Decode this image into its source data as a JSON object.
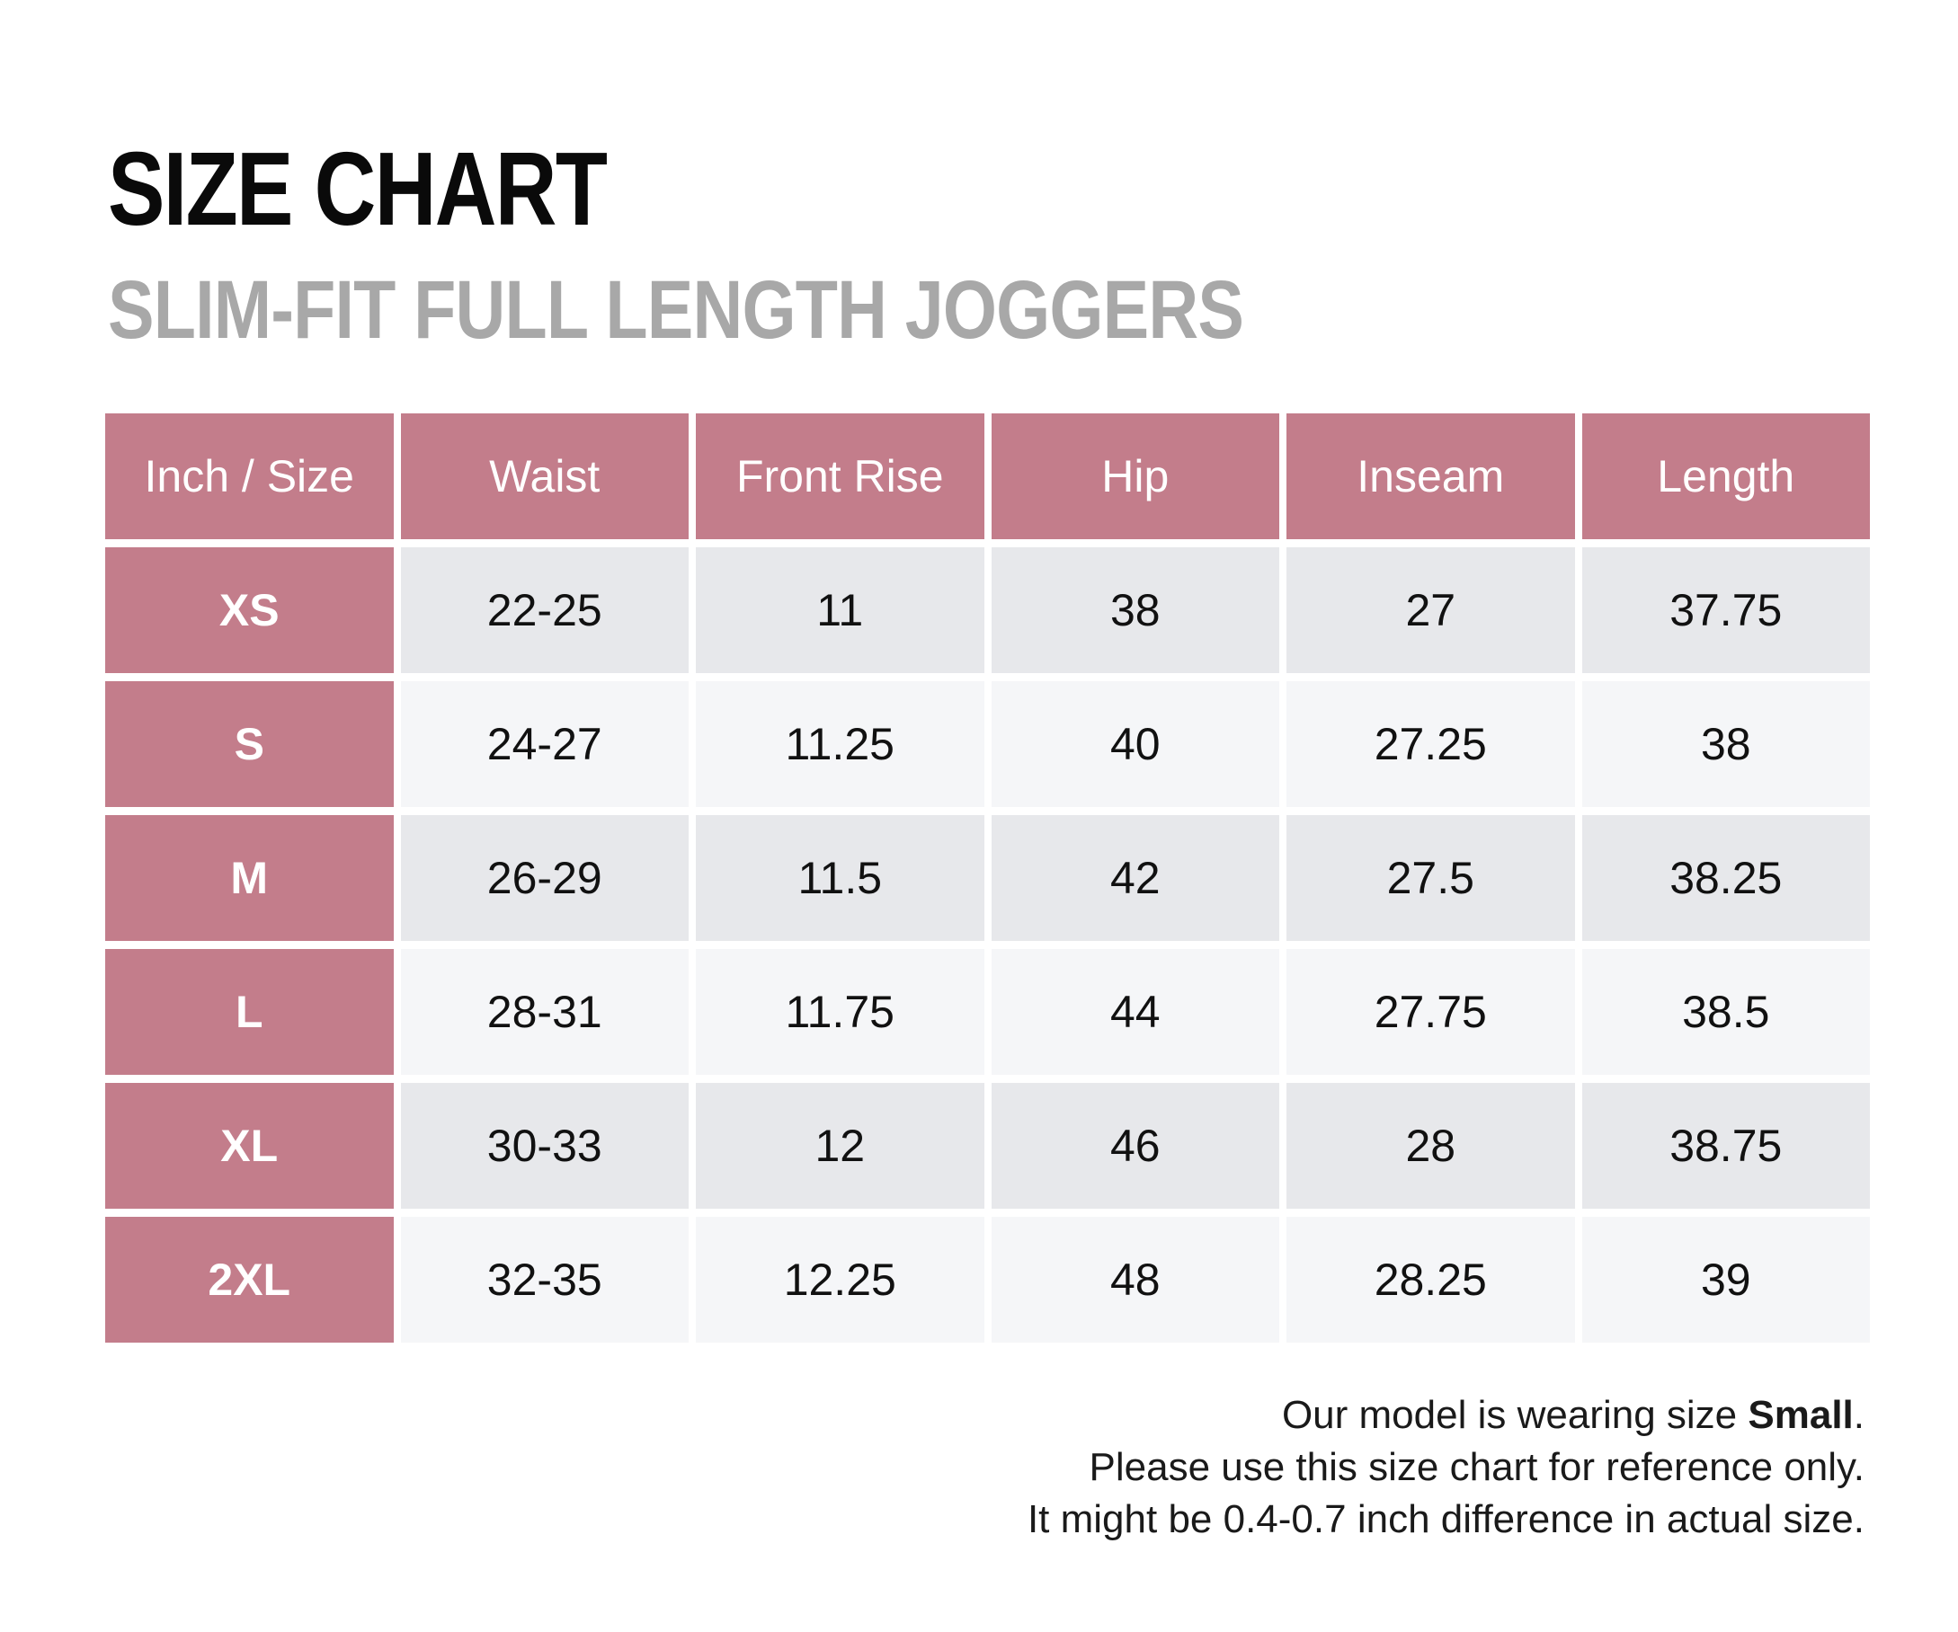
{
  "header": {
    "title": "SIZE CHART",
    "subtitle": "SLIM-FIT FULL LENGTH JOGGERS"
  },
  "table": {
    "columns": [
      "Inch / Size",
      "Waist",
      "Front Rise",
      "Hip",
      "Inseam",
      "Length"
    ],
    "rows": [
      [
        "XS",
        "22-25",
        "11",
        "38",
        "27",
        "37.75"
      ],
      [
        "S",
        "24-27",
        "11.25",
        "40",
        "27.25",
        "38"
      ],
      [
        "M",
        "26-29",
        "11.5",
        "42",
        "27.5",
        "38.25"
      ],
      [
        "L",
        "28-31",
        "11.75",
        "44",
        "27.75",
        "38.5"
      ],
      [
        "XL",
        "30-33",
        "12",
        "46",
        "28",
        "38.75"
      ],
      [
        "2XL",
        "32-35",
        "12.25",
        "48",
        "28.25",
        "39"
      ]
    ]
  },
  "notes": {
    "line1_prefix": "Our model is wearing size ",
    "line1_bold": "Small",
    "line1_suffix": ".",
    "line2": "Please use this size chart for reference only.",
    "line3": "It might be 0.4-0.7 inch difference in actual size."
  },
  "colors": {
    "header_bg": "#c37d8b",
    "row_odd_bg": "#e7e8eb",
    "row_even_bg": "#f5f6f8",
    "subtitle": "#a8a8a8"
  }
}
